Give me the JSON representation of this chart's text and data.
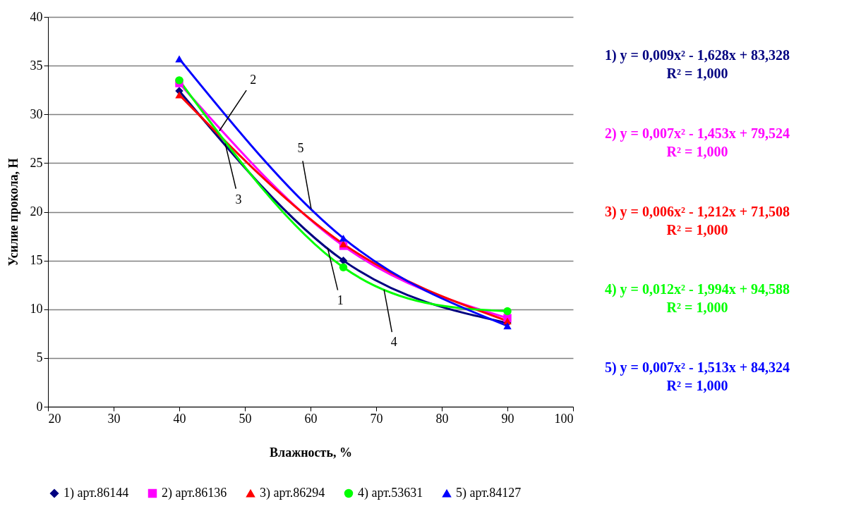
{
  "chart_data": {
    "type": "line",
    "xlabel": "Влажность, %",
    "ylabel": "Усилие прокола, Н",
    "x": [
      40,
      65,
      90
    ],
    "series": [
      {
        "name": "1) арт.86144",
        "color": "#000080",
        "marker": "diamond",
        "values": [
          32.4,
          15.0,
          8.6
        ]
      },
      {
        "name": "2) арт.86136",
        "color": "#ff00ff",
        "marker": "square",
        "values": [
          33.2,
          16.5,
          9.1
        ]
      },
      {
        "name": "3) арт.86294",
        "color": "#ff0000",
        "marker": "triangle",
        "values": [
          32.0,
          16.7,
          8.8
        ]
      },
      {
        "name": "4) арт.53631",
        "color": "#00ff00",
        "marker": "circle",
        "values": [
          33.5,
          14.3,
          9.8
        ]
      },
      {
        "name": "5) арт.84127",
        "color": "#0000ff",
        "marker": "triangle",
        "values": [
          35.7,
          17.3,
          8.3
        ]
      }
    ],
    "xlim": [
      20,
      100
    ],
    "xticks": [
      20,
      30,
      40,
      50,
      60,
      70,
      80,
      90,
      100
    ],
    "ylim": [
      0,
      40
    ],
    "yticks": [
      0,
      5,
      10,
      15,
      20,
      25,
      30,
      35,
      40
    ],
    "grid": "y",
    "legend": "bottom",
    "annotations": [
      "1) y = 0,009x² - 1,628x + 83,328\nR² = 1,000",
      "2) y = 0,007x² - 1,453x + 79,524\nR² = 1,000",
      "3) y = 0,006x² - 1,212x + 71,508\nR² = 1,000",
      "4) y = 0,012x² - 1,994x + 94,588\nR² = 1,000",
      "5) y = 0,007x² - 1,513x + 84,324\nR² = 1,000",
      {
        "text": "1",
        "x": 62.6,
        "y": 16.3
      },
      {
        "text": "2",
        "x": 46.1,
        "y": 28.3
      },
      {
        "text": "3",
        "x": 47.0,
        "y": 27.0
      },
      {
        "text": "4",
        "x": 71.2,
        "y": 12.0
      },
      {
        "text": "5",
        "x": 60.1,
        "y": 20.3
      }
    ]
  }
}
